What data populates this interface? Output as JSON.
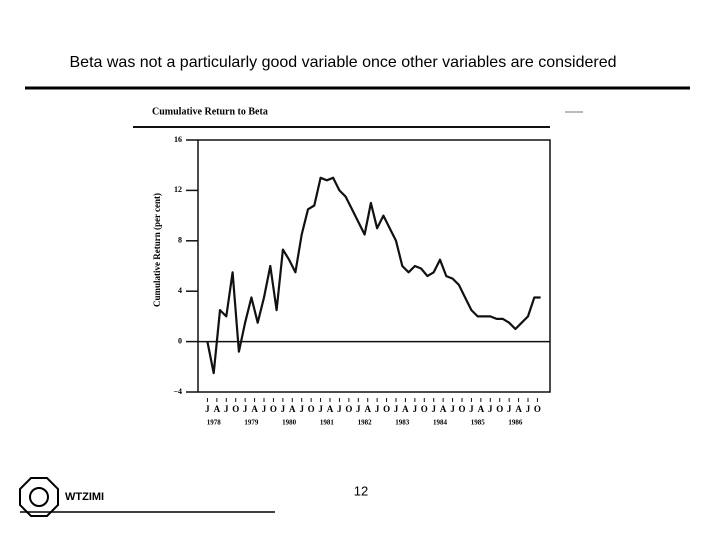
{
  "slide_title": "Beta was not a particularly good variable once other variables are considered",
  "page_number": "12",
  "logo_text": "WTZIMI",
  "chart_data": {
    "type": "line",
    "title": "Cumulative Return to Beta",
    "y_label": "Cumulative Return (per cent)",
    "color": "#111111",
    "x": [
      "1978-01",
      "1978-03",
      "1978-05",
      "1978-07",
      "1978-09",
      "1978-11",
      "1979-01",
      "1979-03",
      "1979-05",
      "1979-07",
      "1979-09",
      "1979-11",
      "1980-01",
      "1980-03",
      "1980-05",
      "1980-07",
      "1980-09",
      "1980-11",
      "1981-01",
      "1981-03",
      "1981-05",
      "1981-07",
      "1981-09",
      "1981-11",
      "1982-01",
      "1982-03",
      "1982-05",
      "1982-07",
      "1982-09",
      "1982-11",
      "1983-01",
      "1983-03",
      "1983-05",
      "1983-07",
      "1983-09",
      "1983-11",
      "1984-01",
      "1984-03",
      "1984-05",
      "1984-07",
      "1984-09",
      "1984-11",
      "1985-01",
      "1985-03",
      "1985-05",
      "1985-07",
      "1985-09",
      "1985-11",
      "1986-01",
      "1986-03",
      "1986-05",
      "1986-07",
      "1986-09",
      "1986-11"
    ],
    "values": [
      0,
      -2.5,
      2.5,
      2,
      5.5,
      -0.8,
      1.5,
      3.5,
      1.5,
      3.5,
      6,
      2.5,
      7.3,
      6.5,
      5.5,
      8.5,
      10.5,
      10.8,
      13,
      12.8,
      13,
      12,
      11.5,
      10.5,
      9.5,
      8.5,
      11,
      9,
      10,
      9,
      8,
      6,
      5.5,
      6,
      5.8,
      5.2,
      5.5,
      6.5,
      5.2,
      5,
      4.5,
      3.5,
      2.5,
      2,
      2,
      2,
      1.8,
      1.8,
      1.5,
      1,
      1.5,
      2,
      3.5,
      3.5
    ],
    "xlim": [
      "1977-10",
      "1987-02"
    ],
    "xticks": [
      {
        "value": "1978-01",
        "label": "J"
      },
      {
        "value": "1978-04",
        "label": "A"
      },
      {
        "value": "1978-07",
        "label": "J"
      },
      {
        "value": "1978-10",
        "label": "O"
      },
      {
        "value": "1979-01",
        "label": "J"
      },
      {
        "value": "1979-04",
        "label": "A"
      },
      {
        "value": "1979-07",
        "label": "J"
      },
      {
        "value": "1979-10",
        "label": "O"
      },
      {
        "value": "1980-01",
        "label": "J"
      },
      {
        "value": "1980-04",
        "label": "A"
      },
      {
        "value": "1980-07",
        "label": "J"
      },
      {
        "value": "1980-10",
        "label": "O"
      },
      {
        "value": "1981-01",
        "label": "J"
      },
      {
        "value": "1981-04",
        "label": "A"
      },
      {
        "value": "1981-07",
        "label": "J"
      },
      {
        "value": "1981-10",
        "label": "O"
      },
      {
        "value": "1982-01",
        "label": "J"
      },
      {
        "value": "1982-04",
        "label": "A"
      },
      {
        "value": "1982-07",
        "label": "J"
      },
      {
        "value": "1982-10",
        "label": "O"
      },
      {
        "value": "1983-01",
        "label": "J"
      },
      {
        "value": "1983-04",
        "label": "A"
      },
      {
        "value": "1983-07",
        "label": "J"
      },
      {
        "value": "1983-10",
        "label": "O"
      },
      {
        "value": "1984-01",
        "label": "J"
      },
      {
        "value": "1984-04",
        "label": "A"
      },
      {
        "value": "1984-07",
        "label": "J"
      },
      {
        "value": "1984-10",
        "label": "O"
      },
      {
        "value": "1985-01",
        "label": "J"
      },
      {
        "value": "1985-04",
        "label": "A"
      },
      {
        "value": "1985-07",
        "label": "J"
      },
      {
        "value": "1985-10",
        "label": "O"
      },
      {
        "value": "1986-01",
        "label": "J"
      },
      {
        "value": "1986-04",
        "label": "A"
      },
      {
        "value": "1986-07",
        "label": "J"
      },
      {
        "value": "1986-10",
        "label": "O"
      }
    ],
    "year_labels": [
      "1978",
      "1979",
      "1980",
      "1981",
      "1982",
      "1983",
      "1984",
      "1985",
      "1986"
    ],
    "ylim": [
      -4,
      16
    ],
    "yticks": [
      {
        "value": -4,
        "label": "−4"
      },
      0,
      4,
      8,
      12,
      16
    ]
  }
}
